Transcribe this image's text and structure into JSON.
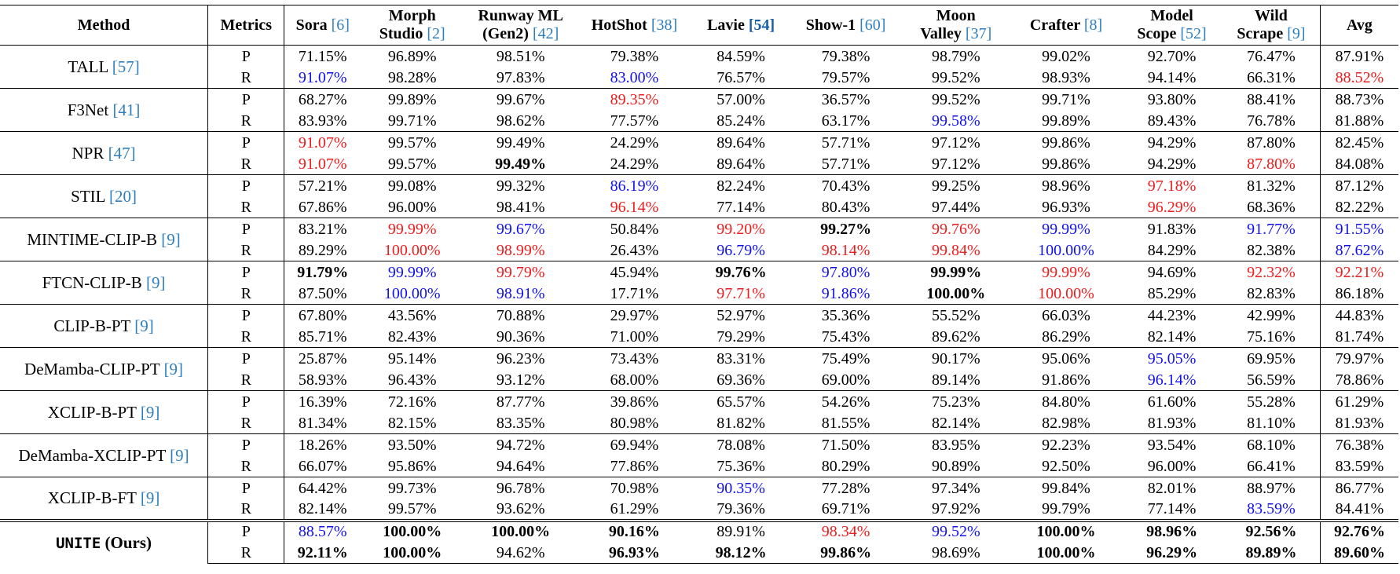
{
  "styles": {
    "red": "#ee1c1c",
    "blue": "#1111ee",
    "cite": "#2e7fbf"
  },
  "header": [
    {
      "key": "method",
      "lines": [
        "Method"
      ],
      "cite": ""
    },
    {
      "key": "metrics",
      "lines": [
        "Metrics"
      ],
      "cite": ""
    },
    {
      "key": "sora",
      "lines": [
        "Sora "
      ],
      "cite": "[6]"
    },
    {
      "key": "morph",
      "lines": [
        "Morph",
        "Studio "
      ],
      "cite": "[2]"
    },
    {
      "key": "runway",
      "lines": [
        "Runway ML",
        "(Gen2) "
      ],
      "cite": "[42]"
    },
    {
      "key": "hotshot",
      "lines": [
        "HotShot "
      ],
      "cite": "[38]"
    },
    {
      "key": "lavie",
      "lines": [
        "Lavie "
      ],
      "cite": "[54]"
    },
    {
      "key": "show1",
      "lines": [
        "Show-1 "
      ],
      "cite": "[60]"
    },
    {
      "key": "moon",
      "lines": [
        "Moon",
        "Valley "
      ],
      "cite": "[37]"
    },
    {
      "key": "crafter",
      "lines": [
        "Crafter "
      ],
      "cite": "[8]"
    },
    {
      "key": "modelscope",
      "lines": [
        "Model",
        "Scope "
      ],
      "cite": "[52]"
    },
    {
      "key": "wildscrape",
      "lines": [
        "Wild",
        "Scrape "
      ],
      "cite": "[9]"
    },
    {
      "key": "avg",
      "lines": [
        "Avg"
      ],
      "cite": ""
    }
  ],
  "rows": [
    {
      "method": "TALL ",
      "cite": "[57]",
      "ours": false,
      "P": [
        [
          "71.15%",
          ""
        ],
        [
          "96.89%",
          ""
        ],
        [
          "98.51%",
          ""
        ],
        [
          "79.38%",
          ""
        ],
        [
          "84.59%",
          ""
        ],
        [
          "79.38%",
          ""
        ],
        [
          "98.79%",
          ""
        ],
        [
          "99.02%",
          ""
        ],
        [
          "92.70%",
          ""
        ],
        [
          "76.47%",
          ""
        ],
        [
          "87.91%",
          ""
        ]
      ],
      "R": [
        [
          "91.07%",
          "blue"
        ],
        [
          "98.28%",
          ""
        ],
        [
          "97.83%",
          ""
        ],
        [
          "83.00%",
          "blue"
        ],
        [
          "76.57%",
          ""
        ],
        [
          "79.57%",
          ""
        ],
        [
          "99.52%",
          ""
        ],
        [
          "98.93%",
          ""
        ],
        [
          "94.14%",
          ""
        ],
        [
          "66.31%",
          ""
        ],
        [
          "88.52%",
          "red"
        ]
      ]
    },
    {
      "method": "F3Net ",
      "cite": "[41]",
      "ours": false,
      "P": [
        [
          "68.27%",
          ""
        ],
        [
          "99.89%",
          ""
        ],
        [
          "99.67%",
          ""
        ],
        [
          "89.35%",
          "red"
        ],
        [
          "57.00%",
          ""
        ],
        [
          "36.57%",
          ""
        ],
        [
          "99.52%",
          ""
        ],
        [
          "99.71%",
          ""
        ],
        [
          "93.80%",
          ""
        ],
        [
          "88.41%",
          ""
        ],
        [
          "88.73%",
          ""
        ]
      ],
      "R": [
        [
          "83.93%",
          ""
        ],
        [
          "99.71%",
          ""
        ],
        [
          "98.62%",
          ""
        ],
        [
          "77.57%",
          ""
        ],
        [
          "85.24%",
          ""
        ],
        [
          "63.17%",
          ""
        ],
        [
          "99.58%",
          "blue"
        ],
        [
          "99.89%",
          ""
        ],
        [
          "89.43%",
          ""
        ],
        [
          "76.78%",
          ""
        ],
        [
          "81.88%",
          ""
        ]
      ]
    },
    {
      "method": "NPR ",
      "cite": "[47]",
      "ours": false,
      "P": [
        [
          "91.07%",
          "red"
        ],
        [
          "99.57%",
          ""
        ],
        [
          "99.49%",
          ""
        ],
        [
          "24.29%",
          ""
        ],
        [
          "89.64%",
          ""
        ],
        [
          "57.71%",
          ""
        ],
        [
          "97.12%",
          ""
        ],
        [
          "99.86%",
          ""
        ],
        [
          "94.29%",
          ""
        ],
        [
          "87.80%",
          ""
        ],
        [
          "82.45%",
          ""
        ]
      ],
      "R": [
        [
          "91.07%",
          "red"
        ],
        [
          "99.57%",
          ""
        ],
        [
          "99.49%",
          "bold"
        ],
        [
          "24.29%",
          ""
        ],
        [
          "89.64%",
          ""
        ],
        [
          "57.71%",
          ""
        ],
        [
          "97.12%",
          ""
        ],
        [
          "99.86%",
          ""
        ],
        [
          "94.29%",
          ""
        ],
        [
          "87.80%",
          "red"
        ],
        [
          "84.08%",
          ""
        ]
      ]
    },
    {
      "method": "STIL ",
      "cite": "[20]",
      "ours": false,
      "P": [
        [
          "57.21%",
          ""
        ],
        [
          "99.08%",
          ""
        ],
        [
          "99.32%",
          ""
        ],
        [
          "86.19%",
          "blue"
        ],
        [
          "82.24%",
          ""
        ],
        [
          "70.43%",
          ""
        ],
        [
          "99.25%",
          ""
        ],
        [
          "98.96%",
          ""
        ],
        [
          "97.18%",
          "red"
        ],
        [
          "81.32%",
          ""
        ],
        [
          "87.12%",
          ""
        ]
      ],
      "R": [
        [
          "67.86%",
          ""
        ],
        [
          "96.00%",
          ""
        ],
        [
          "98.41%",
          ""
        ],
        [
          "96.14%",
          "red"
        ],
        [
          "77.14%",
          ""
        ],
        [
          "80.43%",
          ""
        ],
        [
          "97.44%",
          ""
        ],
        [
          "96.93%",
          ""
        ],
        [
          "96.29%",
          "red"
        ],
        [
          "68.36%",
          ""
        ],
        [
          "82.22%",
          ""
        ]
      ]
    },
    {
      "method": "MINTIME-CLIP-B ",
      "cite": "[9]",
      "ours": false,
      "P": [
        [
          "83.21%",
          ""
        ],
        [
          "99.99%",
          "red"
        ],
        [
          "99.67%",
          "blue"
        ],
        [
          "50.84%",
          ""
        ],
        [
          "99.20%",
          "red"
        ],
        [
          "99.27%",
          "bold"
        ],
        [
          "99.76%",
          "red"
        ],
        [
          "99.99%",
          "blue"
        ],
        [
          "91.83%",
          ""
        ],
        [
          "91.77%",
          "blue"
        ],
        [
          "91.55%",
          "blue"
        ]
      ],
      "R": [
        [
          "89.29%",
          ""
        ],
        [
          "100.00%",
          "red"
        ],
        [
          "98.99%",
          "red"
        ],
        [
          "26.43%",
          ""
        ],
        [
          "96.79%",
          "blue"
        ],
        [
          "98.14%",
          "red"
        ],
        [
          "99.84%",
          "red"
        ],
        [
          "100.00%",
          "blue"
        ],
        [
          "84.29%",
          ""
        ],
        [
          "82.38%",
          ""
        ],
        [
          "87.62%",
          "blue"
        ]
      ]
    },
    {
      "method": "FTCN-CLIP-B ",
      "cite": "[9]",
      "ours": false,
      "P": [
        [
          "91.79%",
          "bold"
        ],
        [
          "99.99%",
          "blue"
        ],
        [
          "99.79%",
          "red"
        ],
        [
          "45.94%",
          ""
        ],
        [
          "99.76%",
          "bold"
        ],
        [
          "97.80%",
          "blue"
        ],
        [
          "99.99%",
          "bold"
        ],
        [
          "99.99%",
          "red"
        ],
        [
          "94.69%",
          ""
        ],
        [
          "92.32%",
          "red"
        ],
        [
          "92.21%",
          "red"
        ]
      ],
      "R": [
        [
          "87.50%",
          ""
        ],
        [
          "100.00%",
          "blue"
        ],
        [
          "98.91%",
          "blue"
        ],
        [
          "17.71%",
          ""
        ],
        [
          "97.71%",
          "red"
        ],
        [
          "91.86%",
          "blue"
        ],
        [
          "100.00%",
          "bold"
        ],
        [
          "100.00%",
          "red"
        ],
        [
          "85.29%",
          ""
        ],
        [
          "82.83%",
          ""
        ],
        [
          "86.18%",
          ""
        ]
      ]
    },
    {
      "method": "CLIP-B-PT ",
      "cite": "[9]",
      "ours": false,
      "P": [
        [
          "67.80%",
          ""
        ],
        [
          "43.56%",
          ""
        ],
        [
          "70.88%",
          ""
        ],
        [
          "29.97%",
          ""
        ],
        [
          "52.97%",
          ""
        ],
        [
          "35.36%",
          ""
        ],
        [
          "55.52%",
          ""
        ],
        [
          "66.03%",
          ""
        ],
        [
          "44.23%",
          ""
        ],
        [
          "42.99%",
          ""
        ],
        [
          "44.83%",
          ""
        ]
      ],
      "R": [
        [
          "85.71%",
          ""
        ],
        [
          "82.43%",
          ""
        ],
        [
          "90.36%",
          ""
        ],
        [
          "71.00%",
          ""
        ],
        [
          "79.29%",
          ""
        ],
        [
          "75.43%",
          ""
        ],
        [
          "89.62%",
          ""
        ],
        [
          "86.29%",
          ""
        ],
        [
          "82.14%",
          ""
        ],
        [
          "75.16%",
          ""
        ],
        [
          "81.74%",
          ""
        ]
      ]
    },
    {
      "method": "DeMamba-CLIP-PT ",
      "cite": "[9]",
      "ours": false,
      "P": [
        [
          "25.87%",
          ""
        ],
        [
          "95.14%",
          ""
        ],
        [
          "96.23%",
          ""
        ],
        [
          "73.43%",
          ""
        ],
        [
          "83.31%",
          ""
        ],
        [
          "75.49%",
          ""
        ],
        [
          "90.17%",
          ""
        ],
        [
          "95.06%",
          ""
        ],
        [
          "95.05%",
          "blue"
        ],
        [
          "69.95%",
          ""
        ],
        [
          "79.97%",
          ""
        ]
      ],
      "R": [
        [
          "58.93%",
          ""
        ],
        [
          "96.43%",
          ""
        ],
        [
          "93.12%",
          ""
        ],
        [
          "68.00%",
          ""
        ],
        [
          "69.36%",
          ""
        ],
        [
          "69.00%",
          ""
        ],
        [
          "89.14%",
          ""
        ],
        [
          "91.86%",
          ""
        ],
        [
          "96.14%",
          "blue"
        ],
        [
          "56.59%",
          ""
        ],
        [
          "78.86%",
          ""
        ]
      ]
    },
    {
      "method": "XCLIP-B-PT ",
      "cite": "[9]",
      "ours": false,
      "P": [
        [
          "16.39%",
          ""
        ],
        [
          "72.16%",
          ""
        ],
        [
          "87.77%",
          ""
        ],
        [
          "39.86%",
          ""
        ],
        [
          "65.57%",
          ""
        ],
        [
          "54.26%",
          ""
        ],
        [
          "75.23%",
          ""
        ],
        [
          "84.80%",
          ""
        ],
        [
          "61.60%",
          ""
        ],
        [
          "55.28%",
          ""
        ],
        [
          "61.29%",
          ""
        ]
      ],
      "R": [
        [
          "81.34%",
          ""
        ],
        [
          "82.15%",
          ""
        ],
        [
          "83.35%",
          ""
        ],
        [
          "80.98%",
          ""
        ],
        [
          "81.82%",
          ""
        ],
        [
          "81.55%",
          ""
        ],
        [
          "82.14%",
          ""
        ],
        [
          "82.98%",
          ""
        ],
        [
          "81.93%",
          ""
        ],
        [
          "81.10%",
          ""
        ],
        [
          "81.93%",
          ""
        ]
      ]
    },
    {
      "method": "DeMamba-XCLIP-PT ",
      "cite": "[9]",
      "ours": false,
      "P": [
        [
          "18.26%",
          ""
        ],
        [
          "93.50%",
          ""
        ],
        [
          "94.72%",
          ""
        ],
        [
          "69.94%",
          ""
        ],
        [
          "78.08%",
          ""
        ],
        [
          "71.50%",
          ""
        ],
        [
          "83.95%",
          ""
        ],
        [
          "92.23%",
          ""
        ],
        [
          "93.54%",
          ""
        ],
        [
          "68.10%",
          ""
        ],
        [
          "76.38%",
          ""
        ]
      ],
      "R": [
        [
          "66.07%",
          ""
        ],
        [
          "95.86%",
          ""
        ],
        [
          "94.64%",
          ""
        ],
        [
          "77.86%",
          ""
        ],
        [
          "75.36%",
          ""
        ],
        [
          "80.29%",
          ""
        ],
        [
          "90.89%",
          ""
        ],
        [
          "92.50%",
          ""
        ],
        [
          "96.00%",
          ""
        ],
        [
          "66.41%",
          ""
        ],
        [
          "83.59%",
          ""
        ]
      ]
    },
    {
      "method": "XCLIP-B-FT ",
      "cite": "[9]",
      "ours": false,
      "P": [
        [
          "64.42%",
          ""
        ],
        [
          "99.73%",
          ""
        ],
        [
          "96.78%",
          ""
        ],
        [
          "70.98%",
          ""
        ],
        [
          "90.35%",
          "blue"
        ],
        [
          "77.28%",
          ""
        ],
        [
          "97.34%",
          ""
        ],
        [
          "99.84%",
          ""
        ],
        [
          "82.01%",
          ""
        ],
        [
          "88.97%",
          ""
        ],
        [
          "86.77%",
          ""
        ]
      ],
      "R": [
        [
          "82.14%",
          ""
        ],
        [
          "99.57%",
          ""
        ],
        [
          "93.62%",
          ""
        ],
        [
          "61.29%",
          ""
        ],
        [
          "79.36%",
          ""
        ],
        [
          "69.71%",
          ""
        ],
        [
          "97.92%",
          ""
        ],
        [
          "99.79%",
          ""
        ],
        [
          "77.14%",
          ""
        ],
        [
          "83.59%",
          "blue"
        ],
        [
          "84.41%",
          ""
        ]
      ]
    },
    {
      "method": "UNITE",
      "method_suffix": " (Ours)",
      "cite": "",
      "ours": true,
      "P": [
        [
          "88.57%",
          "blue"
        ],
        [
          "100.00%",
          "bold"
        ],
        [
          "100.00%",
          "bold"
        ],
        [
          "90.16%",
          "bold"
        ],
        [
          "89.91%",
          ""
        ],
        [
          "98.34%",
          "red"
        ],
        [
          "99.52%",
          "blue"
        ],
        [
          "100.00%",
          "bold"
        ],
        [
          "98.96%",
          "bold"
        ],
        [
          "92.56%",
          "bold"
        ],
        [
          "92.76%",
          "bold"
        ]
      ],
      "R": [
        [
          "92.11%",
          "bold"
        ],
        [
          "100.00%",
          "bold"
        ],
        [
          "94.62%",
          ""
        ],
        [
          "96.93%",
          "bold"
        ],
        [
          "98.12%",
          "bold"
        ],
        [
          "99.86%",
          "bold"
        ],
        [
          "98.69%",
          ""
        ],
        [
          "100.00%",
          "bold"
        ],
        [
          "96.29%",
          "bold"
        ],
        [
          "89.89%",
          "bold"
        ],
        [
          "89.60%",
          "bold"
        ]
      ]
    }
  ],
  "metric_labels": {
    "P": "P",
    "R": "R"
  }
}
